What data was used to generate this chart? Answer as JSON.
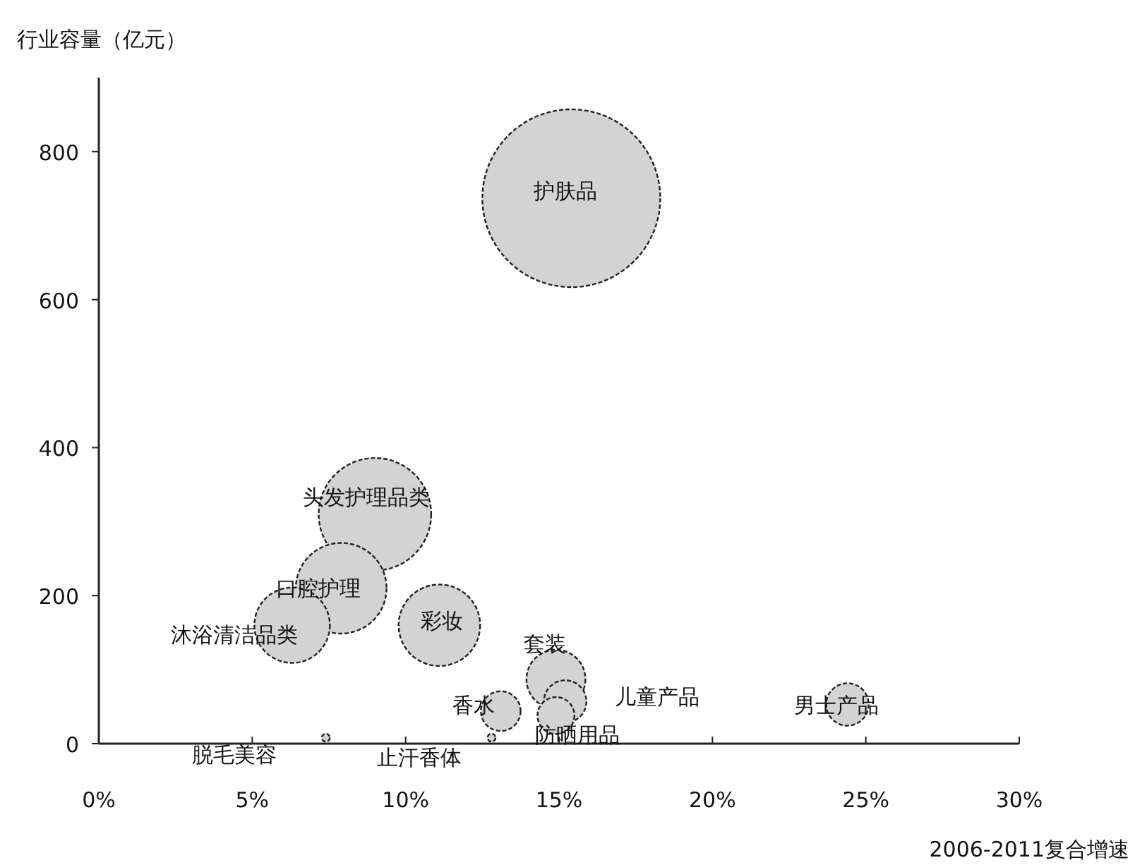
{
  "chart_data": {
    "type": "bubble",
    "ylabel": "行业容量（亿元）",
    "xlabel": "2006-2011复合增速",
    "series": [
      {
        "name": "护肤品",
        "color": "#d3d3d3",
        "x": [
          15.4
        ],
        "values": [
          737
        ],
        "sizes": [
          1
        ]
      },
      {
        "name": "头发护理品类",
        "color": "#d3d3d3",
        "x": [
          9.0
        ],
        "values": [
          310
        ],
        "sizes": [
          0.4
        ]
      },
      {
        "name": "口腔护理",
        "color": "#d3d3d3",
        "x": [
          7.9
        ],
        "values": [
          210
        ],
        "sizes": [
          0.26
        ]
      },
      {
        "name": "沐浴清洁品类",
        "color": "#d3d3d3",
        "x": [
          6.3
        ],
        "values": [
          160
        ],
        "sizes": [
          0.18
        ]
      },
      {
        "name": "彩妆",
        "color": "#d3d3d3",
        "x": [
          11.1
        ],
        "values": [
          160
        ],
        "sizes": [
          0.21
        ]
      },
      {
        "name": "香水",
        "color": "#d3d3d3",
        "x": [
          13.1
        ],
        "values": [
          44
        ],
        "sizes": [
          0.05
        ]
      },
      {
        "name": "套装",
        "color": "#d3d3d3",
        "x": [
          14.9
        ],
        "values": [
          87
        ],
        "sizes": [
          0.11
        ]
      },
      {
        "name": "儿童产品",
        "color": "#d3d3d3",
        "x": [
          15.2
        ],
        "values": [
          57
        ],
        "sizes": [
          0.057
        ]
      },
      {
        "name": "防晒用品",
        "color": "#d3d3d3",
        "x": [
          14.9
        ],
        "values": [
          38
        ],
        "sizes": [
          0.043
        ]
      },
      {
        "name": "男士产品",
        "color": "#d3d3d3",
        "x": [
          24.4
        ],
        "values": [
          53
        ],
        "sizes": [
          0.057
        ]
      },
      {
        "name": "脱毛美容",
        "color": "#d3d3d3",
        "x": [
          7.4
        ],
        "values": [
          8
        ],
        "sizes": [
          0.002
        ]
      },
      {
        "name": "止汗香体",
        "color": "#d3d3d3",
        "x": [
          12.8
        ],
        "values": [
          8
        ],
        "sizes": [
          0.002
        ]
      }
    ],
    "xlim": [
      0,
      30
    ],
    "ylim": [
      0,
      900
    ],
    "xticks": [
      {
        "value": 0,
        "label": "0%"
      },
      {
        "value": 5,
        "label": "5%"
      },
      {
        "value": 10,
        "label": "10%"
      },
      {
        "value": 15,
        "label": "15%"
      },
      {
        "value": 20,
        "label": "20%"
      },
      {
        "value": 25,
        "label": "25%"
      },
      {
        "value": 30,
        "label": "30%"
      }
    ],
    "yticks": [
      0,
      200,
      400,
      600,
      800
    ],
    "grid": false
  }
}
